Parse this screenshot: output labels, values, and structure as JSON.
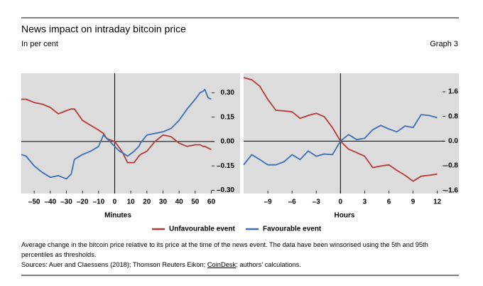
{
  "header": {
    "title": "News impact on intraday bitcoin price",
    "subtitle": "In per cent",
    "graph_label": "Graph 3"
  },
  "chart_data": [
    {
      "type": "line",
      "xlabel": "Minutes",
      "xlim": [
        -58,
        62
      ],
      "ylim": [
        -0.32,
        0.42
      ],
      "xticks": [
        {
          "value": -50,
          "label": "–50"
        },
        {
          "value": -40,
          "label": "–40"
        },
        {
          "value": -30,
          "label": "–30"
        },
        {
          "value": -20,
          "label": "–20"
        },
        {
          "value": -10,
          "label": "–10"
        },
        0,
        10,
        20,
        30,
        40,
        50,
        60
      ],
      "yticks": [
        {
          "value": 0.3,
          "label": "0.30"
        },
        0.15,
        {
          "value": 0,
          "label": "0.00"
        },
        {
          "value": -0.15,
          "label": "–0.15"
        },
        {
          "value": -0.3,
          "label": "–0.30"
        }
      ],
      "x": [
        -58,
        -55,
        -50,
        -45,
        -40,
        -35,
        -30,
        -27,
        -25,
        -20,
        -15,
        -10,
        -7,
        -5,
        -3,
        0,
        3,
        5,
        8,
        12,
        15,
        16,
        20,
        25,
        30,
        35,
        40,
        45,
        50,
        53,
        55,
        56,
        58,
        60
      ],
      "series": [
        {
          "name": "Unfavourable event",
          "color": "#b5393a",
          "values": [
            0.26,
            0.26,
            0.24,
            0.23,
            0.21,
            0.17,
            0.19,
            0.2,
            0.2,
            0.13,
            0.1,
            0.07,
            0.05,
            0.02,
            0.01,
            0,
            -0.04,
            -0.07,
            -0.13,
            -0.13,
            -0.09,
            -0.08,
            -0.06,
            0,
            0.04,
            0.03,
            -0.01,
            -0.03,
            -0.02,
            -0.02,
            -0.03,
            -0.03,
            -0.04,
            -0.05
          ]
        },
        {
          "name": "Favourable event",
          "color": "#3e6eb4",
          "values": [
            -0.08,
            -0.09,
            -0.15,
            -0.19,
            -0.22,
            -0.21,
            -0.23,
            -0.2,
            -0.11,
            -0.08,
            -0.06,
            -0.03,
            0.04,
            0.02,
            0,
            -0.03,
            -0.06,
            -0.07,
            -0.09,
            -0.06,
            -0.03,
            -0.01,
            0.04,
            0.05,
            0.06,
            0.08,
            0.13,
            0.2,
            0.26,
            0.3,
            0.31,
            0.32,
            0.27,
            0.26
          ]
        }
      ]
    },
    {
      "type": "line",
      "xlabel": "Hours",
      "xlim": [
        -12,
        13
      ],
      "ylim": [
        -1.7,
        2.2
      ],
      "xticks": [
        {
          "value": -9,
          "label": "–9"
        },
        {
          "value": -6,
          "label": "–6"
        },
        {
          "value": -3,
          "label": "–3"
        },
        0,
        3,
        6,
        9,
        12
      ],
      "yticks": [
        1.6,
        0.8,
        {
          "value": 0,
          "label": "0.0"
        },
        {
          "value": -0.8,
          "label": "–0.8"
        },
        {
          "value": -1.6,
          "label": "–1.6"
        }
      ],
      "x": [
        -12,
        -11,
        -10,
        -9,
        -8,
        -7,
        -6,
        -5,
        -4,
        -3,
        -2,
        -1,
        0,
        1,
        2,
        3,
        4,
        5,
        6,
        7,
        8,
        9,
        10,
        11,
        12
      ],
      "series": [
        {
          "name": "Unfavourable event",
          "color": "#b5393a",
          "values": [
            2.06,
            1.99,
            1.78,
            1.35,
            1.0,
            0.98,
            0.95,
            0.74,
            0.83,
            0.9,
            0.79,
            0.44,
            0,
            -0.26,
            -0.37,
            -0.49,
            -0.86,
            -0.81,
            -0.77,
            -0.95,
            -1.11,
            -1.3,
            -1.14,
            -1.11,
            -1.07
          ]
        },
        {
          "name": "Favourable event",
          "color": "#3e6eb4",
          "values": [
            -0.77,
            -0.44,
            -0.6,
            -0.77,
            -0.77,
            -0.67,
            -0.44,
            -0.6,
            -0.32,
            -0.49,
            -0.42,
            -0.44,
            0,
            0.21,
            0.05,
            0.09,
            0.37,
            0.51,
            0.39,
            0.3,
            0.49,
            0.44,
            0.86,
            0.83,
            0.76
          ]
        }
      ]
    }
  ],
  "notes": "Average change in the bitcoin price relative to its price at the time of the news event. The data have been winsorised using the 5th and 95th percentiles as thresholds.",
  "sources": [
    "Sources: Auer and Claessens (2018); Thomson Reuters Eikon; ",
    "CoinDesk",
    "; authors’ calculations."
  ]
}
